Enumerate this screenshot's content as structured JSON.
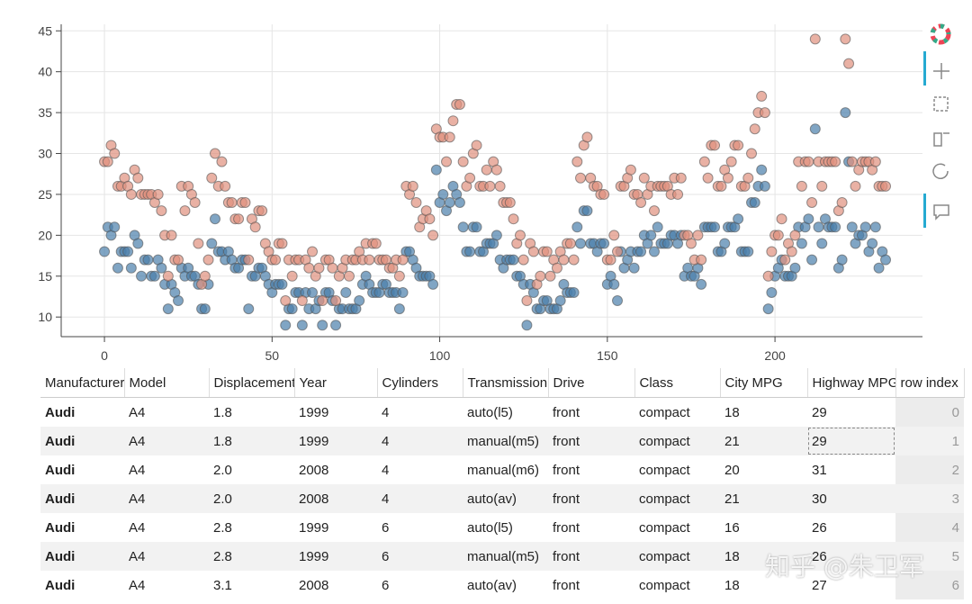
{
  "chart_data": {
    "type": "scatter",
    "x": [
      0,
      1,
      2,
      3,
      4,
      5,
      6,
      7,
      8,
      9,
      10,
      11,
      12,
      13,
      14,
      15,
      16,
      17,
      18,
      19,
      20,
      21,
      22,
      23,
      24,
      25,
      26,
      27,
      28,
      29,
      30,
      31,
      32,
      33,
      34,
      35,
      36,
      37,
      38,
      39,
      40,
      41,
      42,
      43,
      44,
      45,
      46,
      47,
      48,
      49,
      50,
      51,
      52,
      53,
      54,
      55,
      56,
      57,
      58,
      59,
      60,
      61,
      62,
      63,
      64,
      65,
      66,
      67,
      68,
      69,
      70,
      71,
      72,
      73,
      74,
      75,
      76,
      77,
      78,
      79,
      80,
      81,
      82,
      83,
      84,
      85,
      86,
      87,
      88,
      89,
      90,
      91,
      92,
      93,
      94,
      95,
      96,
      97,
      98,
      99,
      100,
      101,
      102,
      103,
      104,
      105,
      106,
      107,
      108,
      109,
      110,
      111,
      112,
      113,
      114,
      115,
      116,
      117,
      118,
      119,
      120,
      121,
      122,
      123,
      124,
      125,
      126,
      127,
      128,
      129,
      130,
      131,
      132,
      133,
      134,
      135,
      136,
      137,
      138,
      139,
      140,
      141,
      142,
      143,
      144,
      145,
      146,
      147,
      148,
      149,
      150,
      151,
      152,
      153,
      154,
      155,
      156,
      157,
      158,
      159,
      160,
      161,
      162,
      163,
      164,
      165,
      166,
      167,
      168,
      169,
      170,
      171,
      172,
      173,
      174,
      175,
      176,
      177,
      178,
      179,
      180,
      181,
      182,
      183,
      184,
      185,
      186,
      187,
      188,
      189,
      190,
      191,
      192,
      193,
      194,
      195,
      196,
      197,
      198,
      199,
      200,
      201,
      202,
      203,
      204,
      205,
      206,
      207,
      208,
      209,
      210,
      211,
      212,
      213,
      214,
      215,
      216,
      217,
      218,
      219,
      220,
      221,
      222,
      223,
      224,
      225,
      226,
      227,
      228,
      229,
      230,
      231,
      232,
      233
    ],
    "series": [
      {
        "color": "#4a7fab",
        "values": [
          18,
          21,
          20,
          21,
          16,
          18,
          18,
          18,
          16,
          20,
          19,
          15,
          17,
          17,
          15,
          15,
          17,
          16,
          14,
          11,
          14,
          13,
          12,
          16,
          15,
          16,
          15,
          15,
          14,
          11,
          11,
          14,
          19,
          22,
          18,
          18,
          17,
          18,
          17,
          16,
          16,
          17,
          17,
          11,
          15,
          15,
          16,
          16,
          15,
          14,
          13,
          14,
          14,
          14,
          9,
          11,
          11,
          13,
          13,
          9,
          13,
          11,
          13,
          11,
          12,
          9,
          13,
          13,
          12,
          9,
          11,
          11,
          13,
          11,
          11,
          11,
          12,
          14,
          15,
          14,
          13,
          13,
          13,
          14,
          14,
          13,
          13,
          13,
          11,
          13,
          18,
          18,
          17,
          16,
          15,
          15,
          15,
          15,
          14,
          28,
          24,
          25,
          23,
          24,
          26,
          25,
          24,
          21,
          18,
          18,
          21,
          21,
          18,
          18,
          19,
          19,
          19,
          20,
          17,
          16,
          17,
          17,
          17,
          15,
          15,
          14,
          9,
          14,
          13,
          11,
          11,
          12,
          12,
          11,
          11,
          11,
          12,
          14,
          13,
          13,
          13,
          21,
          19,
          23,
          23,
          19,
          19,
          18,
          19,
          19,
          14,
          15,
          14,
          12,
          18,
          16,
          17,
          18,
          16,
          18,
          18,
          20,
          19,
          20,
          18,
          21,
          19,
          19,
          19,
          20,
          20,
          19,
          20,
          15,
          16,
          15,
          15,
          16,
          14,
          21,
          21,
          21,
          21,
          18,
          18,
          19,
          21,
          21,
          21,
          22,
          18,
          18,
          18,
          24,
          24,
          26,
          28,
          26,
          11,
          13,
          15,
          16,
          17,
          15,
          15,
          15,
          16,
          21,
          19,
          21,
          22,
          17,
          33,
          21,
          19,
          22,
          21,
          21,
          21,
          16,
          17,
          35,
          29,
          21,
          19,
          20,
          20,
          21,
          18,
          19,
          21,
          16,
          18,
          17
        ]
      },
      {
        "color": "#e0907e",
        "values": [
          29,
          29,
          31,
          30,
          26,
          26,
          27,
          26,
          25,
          28,
          27,
          25,
          25,
          25,
          25,
          24,
          25,
          23,
          20,
          15,
          20,
          17,
          17,
          26,
          23,
          26,
          25,
          24,
          19,
          14,
          15,
          17,
          27,
          30,
          26,
          29,
          26,
          24,
          24,
          22,
          22,
          24,
          24,
          17,
          22,
          21,
          23,
          23,
          19,
          18,
          17,
          17,
          19,
          19,
          12,
          17,
          15,
          17,
          17,
          12,
          17,
          16,
          18,
          15,
          16,
          12,
          17,
          17,
          16,
          12,
          15,
          16,
          17,
          15,
          17,
          17,
          18,
          17,
          19,
          17,
          19,
          19,
          17,
          17,
          17,
          16,
          16,
          17,
          15,
          17,
          26,
          25,
          26,
          24,
          21,
          22,
          23,
          22,
          20,
          33,
          32,
          32,
          29,
          32,
          34,
          36,
          36,
          29,
          26,
          27,
          30,
          31,
          26,
          26,
          28,
          26,
          29,
          28,
          26,
          24,
          24,
          24,
          22,
          19,
          20,
          17,
          12,
          19,
          18,
          14,
          15,
          18,
          18,
          15,
          17,
          16,
          18,
          17,
          19,
          19,
          17,
          29,
          27,
          31,
          32,
          27,
          26,
          26,
          25,
          25,
          17,
          17,
          20,
          18,
          26,
          26,
          27,
          28,
          25,
          25,
          24,
          27,
          25,
          26,
          23,
          26,
          26,
          26,
          26,
          25,
          27,
          25,
          27,
          20,
          20,
          19,
          17,
          20,
          17,
          29,
          27,
          31,
          31,
          26,
          26,
          28,
          27,
          29,
          31,
          31,
          26,
          26,
          27,
          30,
          33,
          35,
          37,
          35,
          15,
          18,
          20,
          20,
          22,
          17,
          19,
          18,
          20,
          29,
          26,
          29,
          29,
          24,
          44,
          29,
          26,
          29,
          29,
          29,
          29,
          23,
          24,
          44,
          41,
          29,
          26,
          28,
          29,
          29,
          29,
          28,
          29,
          26,
          26,
          26
        ]
      }
    ],
    "xlim": [
      -12.9,
      244
    ],
    "ylim": [
      7.6,
      45.8
    ],
    "xticks": [
      0,
      50,
      100,
      150,
      200
    ],
    "yticks": [
      10,
      15,
      20,
      25,
      30,
      35,
      40,
      45
    ],
    "grid": true
  },
  "table": {
    "columns": [
      "Manufacturer",
      "Model",
      "Displacement",
      "Year",
      "Cylinders",
      "Transmission",
      "Drive",
      "Class",
      "City MPG",
      "Highway MPG",
      "row index"
    ],
    "rows": [
      [
        "Audi",
        "A4",
        "1.8",
        "1999",
        "4",
        "auto(l5)",
        "front",
        "compact",
        "18",
        "29",
        "0"
      ],
      [
        "Audi",
        "A4",
        "1.8",
        "1999",
        "4",
        "manual(m5)",
        "front",
        "compact",
        "21",
        "29",
        "1"
      ],
      [
        "Audi",
        "A4",
        "2.0",
        "2008",
        "4",
        "manual(m6)",
        "front",
        "compact",
        "20",
        "31",
        "2"
      ],
      [
        "Audi",
        "A4",
        "2.0",
        "2008",
        "4",
        "auto(av)",
        "front",
        "compact",
        "21",
        "30",
        "3"
      ],
      [
        "Audi",
        "A4",
        "2.8",
        "1999",
        "6",
        "auto(l5)",
        "front",
        "compact",
        "16",
        "26",
        "4"
      ],
      [
        "Audi",
        "A4",
        "2.8",
        "1999",
        "6",
        "manual(m5)",
        "front",
        "compact",
        "18",
        "26",
        "5"
      ],
      [
        "Audi",
        "A4",
        "3.1",
        "2008",
        "6",
        "auto(av)",
        "front",
        "compact",
        "18",
        "27",
        "6"
      ]
    ]
  },
  "watermark": "知乎 @朱卫军"
}
